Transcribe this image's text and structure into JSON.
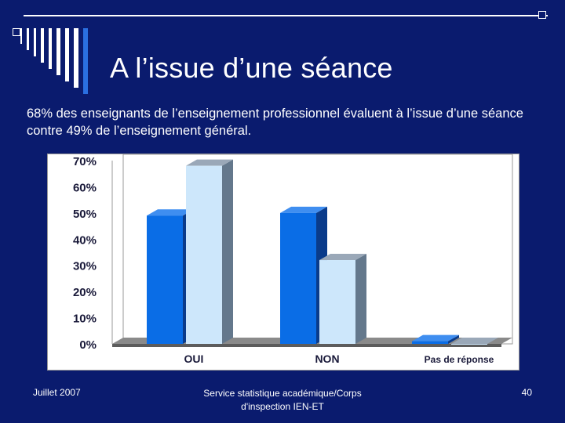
{
  "slide": {
    "title": "A l’issue d’une séance",
    "subtitle": "68% des enseignants de l’enseignement professionnel évaluent à l’issue d’une séance contre 49% de l’enseignement général.",
    "footer_date": "Juillet 2007",
    "footer_center": "Service statistique académique/Corps d'inspection IEN-ET",
    "page_number": "40"
  },
  "colors": {
    "background": "#0a1b6e",
    "series1": "#0a6de6",
    "series2": "#cde7fb"
  },
  "chart_data": {
    "type": "bar",
    "title": "",
    "xlabel": "",
    "ylabel": "",
    "categories": [
      "OUI",
      "NON",
      "Pas de réponse"
    ],
    "series": [
      {
        "name": "Enseignement général",
        "values": [
          49,
          50,
          1
        ]
      },
      {
        "name": "Enseignement professionnel",
        "values": [
          68,
          32,
          0
        ]
      }
    ],
    "ylim": [
      0,
      70
    ],
    "yticks": [
      "0%",
      "10%",
      "20%",
      "30%",
      "40%",
      "50%",
      "60%",
      "70%"
    ],
    "legend": "none"
  }
}
